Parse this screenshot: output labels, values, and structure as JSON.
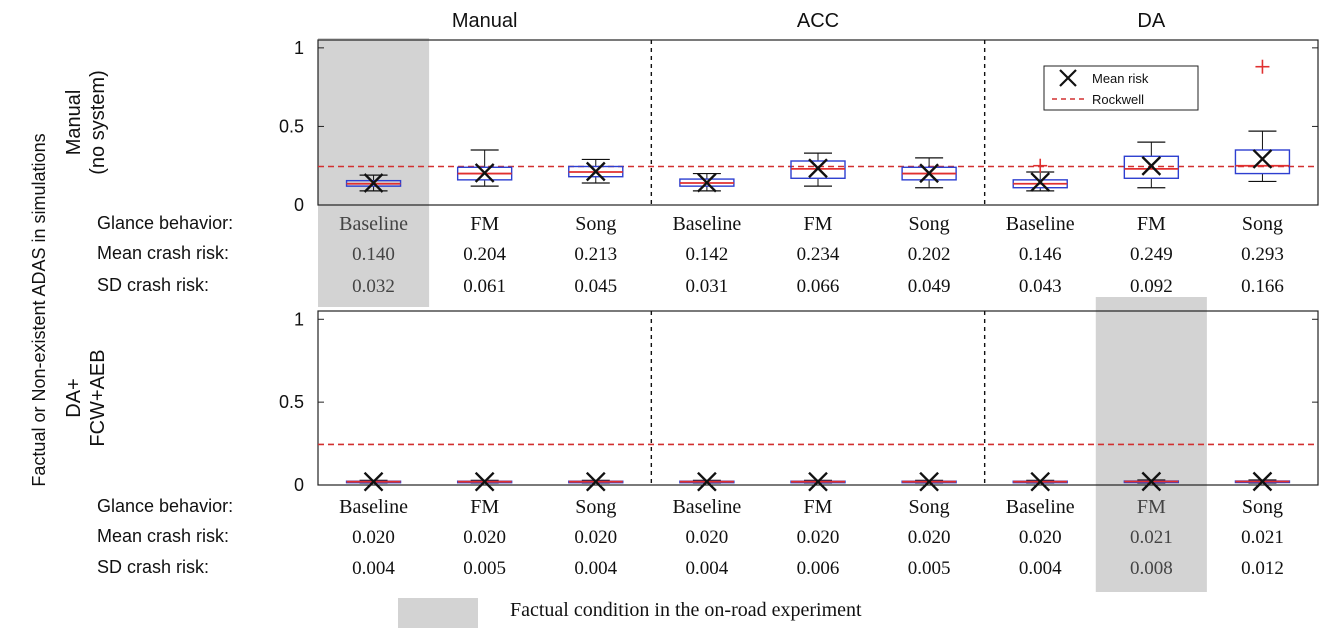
{
  "figure": {
    "y_axis_title": "Factual or Non-existent ADAS in simulations",
    "legend_shading_label": "Factual condition in the on-road experiment",
    "legend_entries": [
      "Mean risk",
      "Rockwell"
    ],
    "row_labels": {
      "glance": "Glance behavior:",
      "mean": "Mean crash risk:",
      "sd": "SD crash risk:"
    },
    "groups": [
      "Manual",
      "ACC",
      "DA"
    ],
    "conditions": [
      "Baseline",
      "FM",
      "Song",
      "Baseline",
      "FM",
      "Song",
      "Baseline",
      "FM",
      "Song"
    ],
    "colors": {
      "box": "#2d3fd0",
      "median": "#e03030",
      "rockwell": "#d23030",
      "mean_marker": "#111111",
      "shade": "#d3d3d3"
    }
  },
  "chart_data": [
    {
      "type": "box",
      "ylabel_lines": [
        "Manual",
        "(no system)"
      ],
      "ylim": [
        0,
        1.05
      ],
      "yticks": [
        "0",
        "0.5",
        "1"
      ],
      "rockwell": 0.245,
      "shaded_index": 0,
      "boxes": [
        {
          "q1": 0.12,
          "median": 0.135,
          "q3": 0.155,
          "whisker_low": 0.09,
          "whisker_high": 0.19,
          "mean": 0.14,
          "outliers": []
        },
        {
          "q1": 0.16,
          "median": 0.2,
          "q3": 0.24,
          "whisker_low": 0.12,
          "whisker_high": 0.35,
          "mean": 0.204,
          "outliers": []
        },
        {
          "q1": 0.18,
          "median": 0.21,
          "q3": 0.245,
          "whisker_low": 0.14,
          "whisker_high": 0.29,
          "mean": 0.213,
          "outliers": []
        },
        {
          "q1": 0.12,
          "median": 0.14,
          "q3": 0.165,
          "whisker_low": 0.09,
          "whisker_high": 0.2,
          "mean": 0.142,
          "outliers": []
        },
        {
          "q1": 0.17,
          "median": 0.23,
          "q3": 0.28,
          "whisker_low": 0.12,
          "whisker_high": 0.33,
          "mean": 0.234,
          "outliers": []
        },
        {
          "q1": 0.16,
          "median": 0.2,
          "q3": 0.24,
          "whisker_low": 0.11,
          "whisker_high": 0.3,
          "mean": 0.202,
          "outliers": []
        },
        {
          "q1": 0.11,
          "median": 0.135,
          "q3": 0.16,
          "whisker_low": 0.09,
          "whisker_high": 0.21,
          "mean": 0.146,
          "outliers": [
            0.25
          ]
        },
        {
          "q1": 0.17,
          "median": 0.23,
          "q3": 0.31,
          "whisker_low": 0.11,
          "whisker_high": 0.4,
          "mean": 0.249,
          "outliers": []
        },
        {
          "q1": 0.2,
          "median": 0.25,
          "q3": 0.35,
          "whisker_low": 0.15,
          "whisker_high": 0.47,
          "mean": 0.293,
          "outliers": [
            0.88
          ]
        }
      ],
      "stats_mean": [
        "0.140",
        "0.204",
        "0.213",
        "0.142",
        "0.234",
        "0.202",
        "0.146",
        "0.249",
        "0.293"
      ],
      "stats_sd": [
        "0.032",
        "0.061",
        "0.045",
        "0.031",
        "0.066",
        "0.049",
        "0.043",
        "0.092",
        "0.166"
      ]
    },
    {
      "type": "box",
      "ylabel_lines": [
        "DA+",
        "FCW+AEB"
      ],
      "ylim": [
        0,
        1.05
      ],
      "yticks": [
        "0",
        "0.5",
        "1"
      ],
      "rockwell": 0.245,
      "shaded_index": 7,
      "boxes": [
        {
          "q1": 0.017,
          "median": 0.02,
          "q3": 0.023,
          "whisker_low": 0.012,
          "whisker_high": 0.028,
          "mean": 0.02,
          "outliers": []
        },
        {
          "q1": 0.017,
          "median": 0.02,
          "q3": 0.023,
          "whisker_low": 0.012,
          "whisker_high": 0.028,
          "mean": 0.02,
          "outliers": []
        },
        {
          "q1": 0.017,
          "median": 0.02,
          "q3": 0.023,
          "whisker_low": 0.012,
          "whisker_high": 0.028,
          "mean": 0.02,
          "outliers": []
        },
        {
          "q1": 0.017,
          "median": 0.02,
          "q3": 0.023,
          "whisker_low": 0.012,
          "whisker_high": 0.028,
          "mean": 0.02,
          "outliers": []
        },
        {
          "q1": 0.017,
          "median": 0.02,
          "q3": 0.023,
          "whisker_low": 0.012,
          "whisker_high": 0.028,
          "mean": 0.02,
          "outliers": []
        },
        {
          "q1": 0.017,
          "median": 0.02,
          "q3": 0.023,
          "whisker_low": 0.012,
          "whisker_high": 0.028,
          "mean": 0.02,
          "outliers": []
        },
        {
          "q1": 0.017,
          "median": 0.02,
          "q3": 0.023,
          "whisker_low": 0.012,
          "whisker_high": 0.028,
          "mean": 0.02,
          "outliers": []
        },
        {
          "q1": 0.017,
          "median": 0.021,
          "q3": 0.024,
          "whisker_low": 0.012,
          "whisker_high": 0.03,
          "mean": 0.021,
          "outliers": []
        },
        {
          "q1": 0.017,
          "median": 0.021,
          "q3": 0.024,
          "whisker_low": 0.012,
          "whisker_high": 0.03,
          "mean": 0.021,
          "outliers": []
        }
      ],
      "stats_mean": [
        "0.020",
        "0.020",
        "0.020",
        "0.020",
        "0.020",
        "0.020",
        "0.020",
        "0.021",
        "0.021"
      ],
      "stats_sd": [
        "0.004",
        "0.005",
        "0.004",
        "0.004",
        "0.006",
        "0.005",
        "0.004",
        "0.008",
        "0.012"
      ]
    }
  ]
}
